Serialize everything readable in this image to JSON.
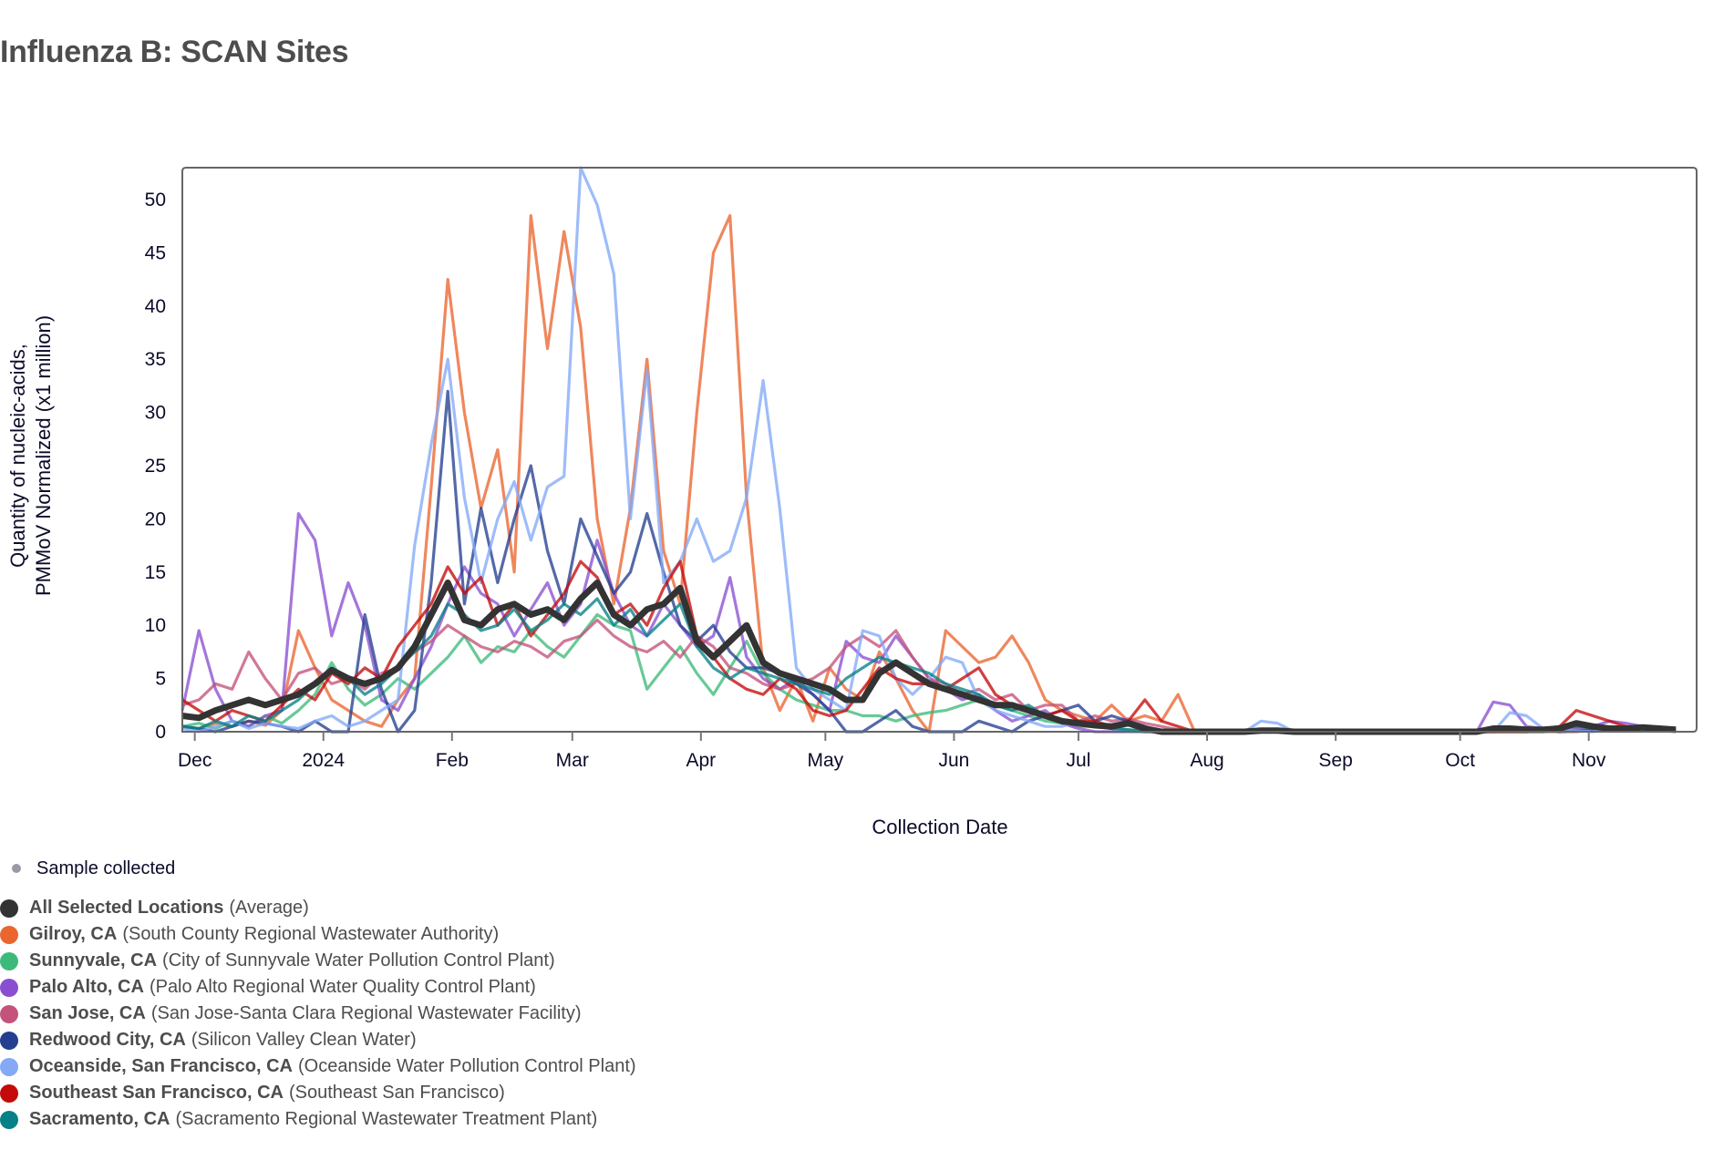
{
  "title": "Influenza B: SCAN Sites",
  "legend": {
    "sample_label": "Sample collected",
    "sample_color": "#9a9aa6"
  },
  "chart_data": {
    "type": "line",
    "title": "Influenza B: SCAN Sites",
    "xlabel": "Collection Date",
    "ylabel_lines": [
      "Quantity of nucleic-acids,",
      "PMMoV Normalized (x1 million)"
    ],
    "x_start_date": "2023-11-28",
    "x_step_days": 4,
    "xlim": [
      "2023-11-28",
      "2024-11-27"
    ],
    "ylim": [
      0,
      53
    ],
    "yticks": [
      0,
      5,
      10,
      15,
      20,
      25,
      30,
      35,
      40,
      45,
      50
    ],
    "xticks": [
      {
        "date": "2023-12-01",
        "label": "Dec"
      },
      {
        "date": "2024-01-01",
        "label": "2024"
      },
      {
        "date": "2024-02-01",
        "label": "Feb"
      },
      {
        "date": "2024-03-01",
        "label": "Mar"
      },
      {
        "date": "2024-04-01",
        "label": "Apr"
      },
      {
        "date": "2024-05-01",
        "label": "May"
      },
      {
        "date": "2024-06-01",
        "label": "Jun"
      },
      {
        "date": "2024-07-01",
        "label": "Jul"
      },
      {
        "date": "2024-08-01",
        "label": "Aug"
      },
      {
        "date": "2024-09-01",
        "label": "Sep"
      },
      {
        "date": "2024-10-01",
        "label": "Oct"
      },
      {
        "date": "2024-11-01",
        "label": "Nov"
      }
    ],
    "grid": false,
    "legend_position": "bottom-left",
    "series": [
      {
        "name": "Gilroy, CA",
        "facility": "(South County Regional Wastewater Authority)",
        "color": "#eb652f",
        "values": [
          0.5,
          0.3,
          0.8,
          0.5,
          1.0,
          0.6,
          2.0,
          9.5,
          6.0,
          3.0,
          2.0,
          1.0,
          0.5,
          3.0,
          5.0,
          23.0,
          42.5,
          30.0,
          21.0,
          26.5,
          15.0,
          48.5,
          36.0,
          47.0,
          38.0,
          20.0,
          12.0,
          21.0,
          35.0,
          17.0,
          12.0,
          30.0,
          45.0,
          48.5,
          22.0,
          6.0,
          2.0,
          5.0,
          1.0,
          6.0,
          4.0,
          3.0,
          7.5,
          5.0,
          2.0,
          0.0,
          9.5,
          8.0,
          6.5,
          7.0,
          9.0,
          6.5,
          3.0,
          2.0,
          1.5,
          1.0,
          2.5,
          1.0,
          1.5,
          1.0,
          3.5,
          0.0,
          0.0,
          0.0,
          0.0,
          0.0,
          0.0,
          0.0,
          0.0,
          0.0,
          0.0,
          0.0,
          0.0,
          0.0,
          0.0,
          0.0,
          0.0,
          0.0,
          0.0,
          0.0,
          0.0,
          0.0,
          0.0,
          0.0,
          0.0,
          0.2,
          0.3,
          0.2,
          0.3,
          0.2,
          0.1
        ]
      },
      {
        "name": "Sunnyvale, CA",
        "facility": "(City of Sunnyvale Water Pollution Control Plant)",
        "color": "#3dba7a",
        "values": [
          0.5,
          0.8,
          0.3,
          1.0,
          0.5,
          1.5,
          0.8,
          2.0,
          3.5,
          6.5,
          4.0,
          2.5,
          3.5,
          5.0,
          4.0,
          5.5,
          7.0,
          9.0,
          6.5,
          8.0,
          7.5,
          9.5,
          8.0,
          7.0,
          9.0,
          11.0,
          10.0,
          9.5,
          4.0,
          6.0,
          8.0,
          5.5,
          3.5,
          6.0,
          8.5,
          5.5,
          4.0,
          3.0,
          2.5,
          2.0,
          2.0,
          1.5,
          1.5,
          1.0,
          1.5,
          1.8,
          2.0,
          2.5,
          3.0,
          2.5,
          2.0,
          1.5,
          1.0,
          0.8,
          0.5,
          0.5,
          0.3,
          0.2,
          0.1,
          0.0,
          0.0,
          0.0,
          0.0,
          0.0,
          0.0,
          0.0,
          0.0,
          0.0,
          0.0,
          0.0,
          0.0,
          0.0,
          0.0,
          0.0,
          0.0,
          0.0,
          0.0,
          0.0,
          0.0,
          0.0,
          0.0,
          0.0,
          0.0,
          0.1,
          0.2,
          0.1,
          0.3,
          0.2,
          0.1,
          0.1,
          0.0
        ]
      },
      {
        "name": "Palo Alto, CA",
        "facility": "(Palo Alto Regional Water Quality Control Plant)",
        "color": "#8a4fd1",
        "values": [
          2.0,
          9.5,
          4.0,
          1.0,
          0.5,
          1.5,
          2.0,
          20.5,
          18.0,
          9.0,
          14.0,
          10.0,
          3.0,
          2.0,
          5.0,
          8.0,
          12.0,
          15.5,
          13.0,
          12.0,
          9.0,
          11.5,
          14.0,
          10.0,
          12.0,
          18.0,
          13.0,
          10.0,
          9.0,
          12.0,
          10.0,
          8.0,
          9.0,
          14.5,
          7.0,
          5.0,
          4.0,
          5.0,
          3.5,
          2.0,
          8.5,
          7.0,
          6.5,
          9.0,
          7.0,
          5.0,
          4.0,
          3.0,
          3.5,
          2.0,
          1.0,
          1.5,
          2.0,
          0.8,
          0.3,
          0.0,
          0.0,
          0.0,
          0.0,
          0.0,
          0.0,
          0.0,
          0.0,
          0.0,
          0.0,
          0.0,
          0.0,
          0.0,
          0.0,
          0.0,
          0.0,
          0.0,
          0.0,
          0.0,
          0.0,
          0.0,
          0.0,
          0.0,
          0.0,
          2.8,
          2.5,
          0.5,
          0.3,
          0.2,
          0.3,
          0.5,
          1.0,
          0.8,
          0.5,
          0.3,
          0.2
        ]
      },
      {
        "name": "San Jose, CA",
        "facility": "(San Jose-Santa Clara Regional Wastewater Facility)",
        "color": "#c4527a",
        "values": [
          2.5,
          3.0,
          4.5,
          4.0,
          7.5,
          5.0,
          3.0,
          5.5,
          6.0,
          4.5,
          5.0,
          4.0,
          5.5,
          6.0,
          7.5,
          8.5,
          10.0,
          9.0,
          8.0,
          7.5,
          8.5,
          8.0,
          7.0,
          8.5,
          9.0,
          10.5,
          9.0,
          8.0,
          7.5,
          8.5,
          7.0,
          9.0,
          8.0,
          6.0,
          5.5,
          4.5,
          4.0,
          4.5,
          5.0,
          6.0,
          8.0,
          9.0,
          8.0,
          9.5,
          7.0,
          5.0,
          4.5,
          3.5,
          4.0,
          3.0,
          3.5,
          2.0,
          2.5,
          2.5,
          1.0,
          1.5,
          1.0,
          1.2,
          0.8,
          0.5,
          0.2,
          0.0,
          0.0,
          0.0,
          0.0,
          0.0,
          0.0,
          0.0,
          0.0,
          0.0,
          0.0,
          0.0,
          0.0,
          0.0,
          0.0,
          0.0,
          0.0,
          0.0,
          0.0,
          0.1,
          0.2,
          0.3,
          0.2,
          0.4,
          0.8,
          0.5,
          0.3,
          0.4,
          0.5,
          0.3,
          0.2
        ]
      },
      {
        "name": "Redwood City, CA",
        "facility": "(Silicon Valley Clean Water)",
        "color": "#243f8f",
        "values": [
          0.5,
          0.3,
          0.0,
          0.5,
          1.0,
          0.8,
          0.5,
          0.0,
          1.0,
          0.0,
          0.0,
          11.0,
          4.0,
          0.0,
          2.0,
          14.0,
          32.0,
          12.0,
          21.0,
          14.0,
          20.0,
          25.0,
          17.0,
          12.0,
          20.0,
          16.5,
          13.0,
          15.0,
          20.5,
          15.0,
          10.0,
          8.5,
          10.0,
          7.5,
          6.0,
          6.0,
          5.5,
          4.5,
          3.5,
          2.0,
          0.0,
          0.0,
          1.0,
          2.0,
          0.5,
          0.0,
          0.0,
          0.0,
          1.0,
          0.5,
          0.0,
          1.0,
          1.5,
          2.0,
          2.5,
          1.0,
          1.5,
          1.0,
          0.5,
          0.0,
          0.0,
          0.0,
          0.0,
          0.0,
          0.0,
          0.0,
          0.0,
          0.0,
          0.0,
          0.0,
          0.0,
          0.0,
          0.0,
          0.0,
          0.0,
          0.0,
          0.0,
          0.0,
          0.0,
          0.0,
          0.2,
          0.3,
          0.2,
          0.0,
          0.1,
          0.2,
          0.3,
          0.2,
          0.3,
          0.2,
          0.1
        ]
      },
      {
        "name": "Oceanside, San Francisco, CA",
        "facility": "(Oceanside Water Pollution Control Plant)",
        "color": "#83a9f7",
        "values": [
          0.3,
          0.0,
          0.5,
          1.0,
          0.3,
          0.8,
          0.5,
          0.3,
          1.0,
          1.5,
          0.5,
          1.0,
          2.0,
          3.0,
          17.5,
          27.0,
          35.0,
          22.0,
          14.0,
          20.0,
          23.5,
          18.0,
          23.0,
          24.0,
          53.0,
          49.5,
          43.0,
          20.0,
          34.0,
          14.0,
          16.0,
          20.0,
          16.0,
          17.0,
          22.0,
          33.0,
          21.0,
          6.0,
          4.0,
          3.0,
          2.0,
          9.5,
          9.0,
          5.0,
          3.5,
          5.0,
          7.0,
          6.5,
          3.0,
          2.0,
          1.5,
          1.0,
          0.5,
          0.5,
          1.0,
          0.5,
          0.3,
          0.0,
          0.0,
          0.0,
          0.0,
          0.0,
          0.0,
          0.0,
          0.0,
          1.0,
          0.8,
          0.0,
          0.0,
          0.0,
          0.0,
          0.0,
          0.0,
          0.0,
          0.0,
          0.0,
          0.0,
          0.0,
          0.0,
          0.0,
          1.8,
          1.5,
          0.3,
          0.2,
          0.1,
          0.0,
          0.2,
          0.3,
          0.5,
          0.3,
          0.2
        ]
      },
      {
        "name": "Southeast San Francisco, CA",
        "facility": "(Southeast San Francisco)",
        "color": "#c40a0a",
        "values": [
          3.0,
          2.0,
          1.0,
          2.0,
          1.5,
          1.0,
          2.5,
          4.0,
          3.0,
          5.5,
          4.5,
          6.0,
          5.0,
          8.0,
          10.0,
          12.0,
          15.5,
          13.0,
          14.5,
          10.0,
          12.0,
          9.0,
          11.0,
          13.0,
          16.0,
          14.5,
          11.0,
          12.0,
          10.0,
          13.5,
          16.0,
          9.0,
          7.0,
          5.0,
          4.0,
          3.5,
          5.0,
          4.0,
          2.0,
          1.5,
          2.0,
          4.0,
          6.0,
          5.0,
          4.5,
          4.5,
          4.0,
          5.0,
          6.0,
          3.5,
          2.5,
          2.0,
          1.5,
          2.0,
          1.0,
          1.0,
          0.5,
          1.0,
          3.0,
          1.0,
          0.5,
          0.0,
          0.0,
          0.0,
          0.0,
          0.0,
          0.0,
          0.0,
          0.0,
          0.0,
          0.0,
          0.0,
          0.0,
          0.0,
          0.0,
          0.0,
          0.0,
          0.0,
          0.0,
          0.0,
          0.0,
          0.0,
          0.3,
          0.5,
          2.0,
          1.5,
          1.0,
          0.5,
          0.3,
          0.2,
          0.1
        ]
      },
      {
        "name": "Sacramento, CA",
        "facility": "(Sacramento Regional Wastewater Treatment Plant)",
        "color": "#068088",
        "values": [
          0.5,
          0.3,
          1.0,
          0.5,
          1.5,
          1.0,
          2.0,
          3.0,
          4.5,
          6.0,
          5.0,
          3.5,
          4.5,
          6.0,
          7.5,
          9.0,
          12.0,
          11.0,
          9.5,
          10.0,
          11.5,
          9.5,
          10.5,
          12.0,
          11.0,
          12.5,
          10.0,
          11.5,
          9.0,
          10.5,
          12.0,
          8.0,
          6.0,
          5.0,
          6.0,
          5.5,
          5.0,
          4.5,
          4.0,
          3.5,
          5.0,
          6.0,
          7.0,
          6.5,
          6.0,
          5.5,
          4.5,
          4.0,
          3.5,
          2.5,
          2.0,
          2.5,
          1.5,
          1.0,
          0.8,
          0.5,
          0.3,
          0.2,
          0.0,
          0.0,
          0.0,
          0.0,
          0.0,
          0.0,
          0.0,
          0.0,
          0.0,
          0.0,
          0.0,
          0.0,
          0.0,
          0.0,
          0.0,
          0.0,
          0.0,
          0.0,
          0.0,
          0.0,
          0.0,
          0.2,
          0.3,
          0.2,
          0.3,
          0.4,
          0.5,
          0.4,
          0.3,
          0.4,
          0.3,
          0.2,
          0.1
        ]
      },
      {
        "name": "All Selected Locations",
        "facility": "(Average)",
        "color": "#333333",
        "average": true,
        "values": [
          1.5,
          1.3,
          2.0,
          2.5,
          3.0,
          2.5,
          3.0,
          3.5,
          4.5,
          5.8,
          5.0,
          4.5,
          5.0,
          6.0,
          8.0,
          11.0,
          14.0,
          10.5,
          10.0,
          11.5,
          12.0,
          11.0,
          11.5,
          10.5,
          12.5,
          14.0,
          11.0,
          10.0,
          11.5,
          12.0,
          13.5,
          8.5,
          7.0,
          8.5,
          10.0,
          6.5,
          5.5,
          5.0,
          4.5,
          4.0,
          3.0,
          3.0,
          5.5,
          6.5,
          5.5,
          4.5,
          4.0,
          3.5,
          3.0,
          2.5,
          2.5,
          2.0,
          1.5,
          1.0,
          0.8,
          0.6,
          0.5,
          0.8,
          0.3,
          0.0,
          0.0,
          0.0,
          0.0,
          0.0,
          0.0,
          0.1,
          0.1,
          0.0,
          0.0,
          0.0,
          0.0,
          0.0,
          0.0,
          0.0,
          0.0,
          0.0,
          0.0,
          0.0,
          0.0,
          0.3,
          0.3,
          0.2,
          0.2,
          0.3,
          0.8,
          0.5,
          0.3,
          0.3,
          0.4,
          0.3,
          0.2
        ]
      }
    ]
  }
}
